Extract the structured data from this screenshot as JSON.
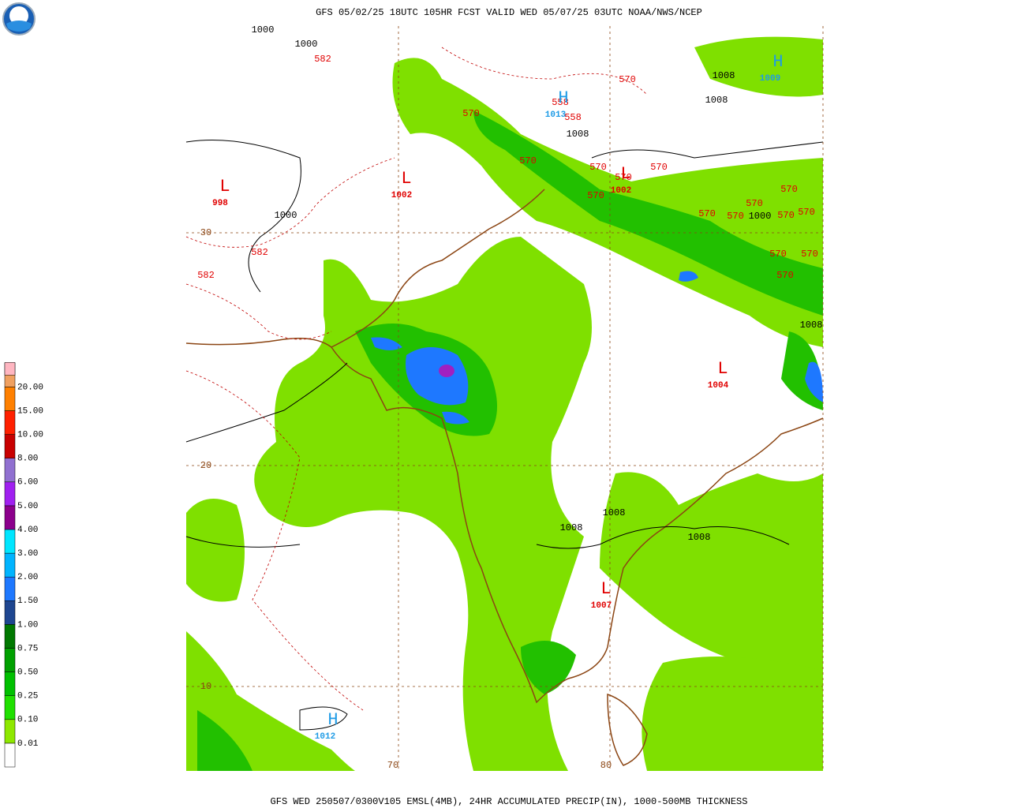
{
  "header": {
    "title": "GFS 05/02/25 18UTC 105HR FCST VALID WED 05/07/25 03UTC NOAA/NWS/NCEP"
  },
  "footer": {
    "caption": "GFS WED 250507/0300V105 EMSL(4MB), 24HR ACCUMULATED PRECIP(IN), 1000-500MB THICKNESS"
  },
  "legend": {
    "items": [
      {
        "label": "0.01",
        "color": "#8ee800"
      },
      {
        "label": "0.10",
        "color": "#20e000"
      },
      {
        "label": "0.25",
        "color": "#00c000"
      },
      {
        "label": "0.50",
        "color": "#00a000"
      },
      {
        "label": "0.75",
        "color": "#007800"
      },
      {
        "label": "1.00",
        "color": "#1e4690"
      },
      {
        "label": "1.50",
        "color": "#1e78ff"
      },
      {
        "label": "2.00",
        "color": "#00b4ff"
      },
      {
        "label": "3.00",
        "color": "#00e6ff"
      },
      {
        "label": "4.00",
        "color": "#8c008c"
      },
      {
        "label": "5.00",
        "color": "#a020f0"
      },
      {
        "label": "6.00",
        "color": "#9070d0"
      },
      {
        "label": "8.00",
        "color": "#c80000"
      },
      {
        "label": "10.00",
        "color": "#ff2000"
      },
      {
        "label": "15.00",
        "color": "#ff8000"
      },
      {
        "label": "20.00",
        "color": "#f0a060"
      }
    ],
    "top_color": "#ffb6c1"
  },
  "map": {
    "isobar_labels": [
      "1000",
      "1000",
      "1000",
      "1008",
      "1008",
      "1008",
      "1000",
      "1008",
      "1008",
      "1008",
      "1008"
    ],
    "thickness_labels": [
      "582",
      "570",
      "570",
      "558",
      "558",
      "570",
      "570",
      "570",
      "570",
      "570",
      "570",
      "570",
      "570",
      "570",
      "570",
      "570",
      "570",
      "570",
      "570",
      "582",
      "582"
    ],
    "lows": [
      {
        "symbol": "L",
        "value": "998"
      },
      {
        "symbol": "L",
        "value": "1002"
      },
      {
        "symbol": "L",
        "value": "1002"
      },
      {
        "symbol": "L",
        "value": "1004"
      },
      {
        "symbol": "L",
        "value": "1007"
      }
    ],
    "highs": [
      {
        "symbol": "H",
        "value": "1009"
      },
      {
        "symbol": "H",
        "value": "1013"
      },
      {
        "symbol": "H",
        "value": "1012"
      }
    ],
    "grid_labels": [
      "30",
      "20",
      "10",
      "70",
      "80"
    ]
  }
}
